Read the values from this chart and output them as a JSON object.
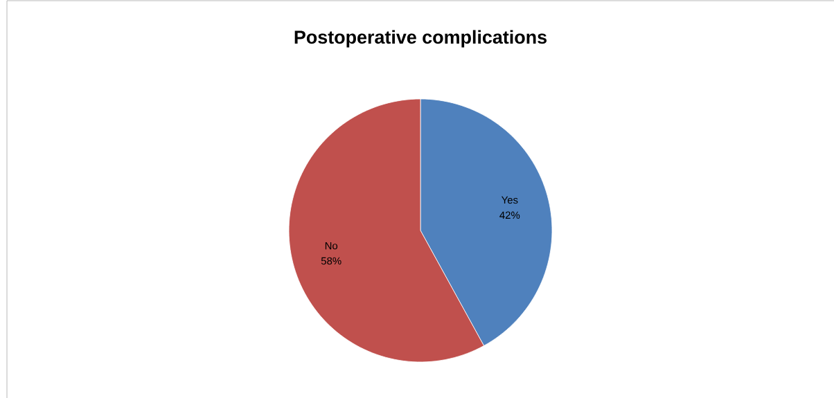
{
  "chart_data": {
    "type": "pie",
    "title": "Postoperative complications",
    "categories": [
      "Yes",
      "No"
    ],
    "values": [
      42,
      58
    ],
    "colors": [
      "#4f81bd",
      "#c0504d"
    ],
    "value_labels": [
      "42%",
      "58%"
    ]
  }
}
